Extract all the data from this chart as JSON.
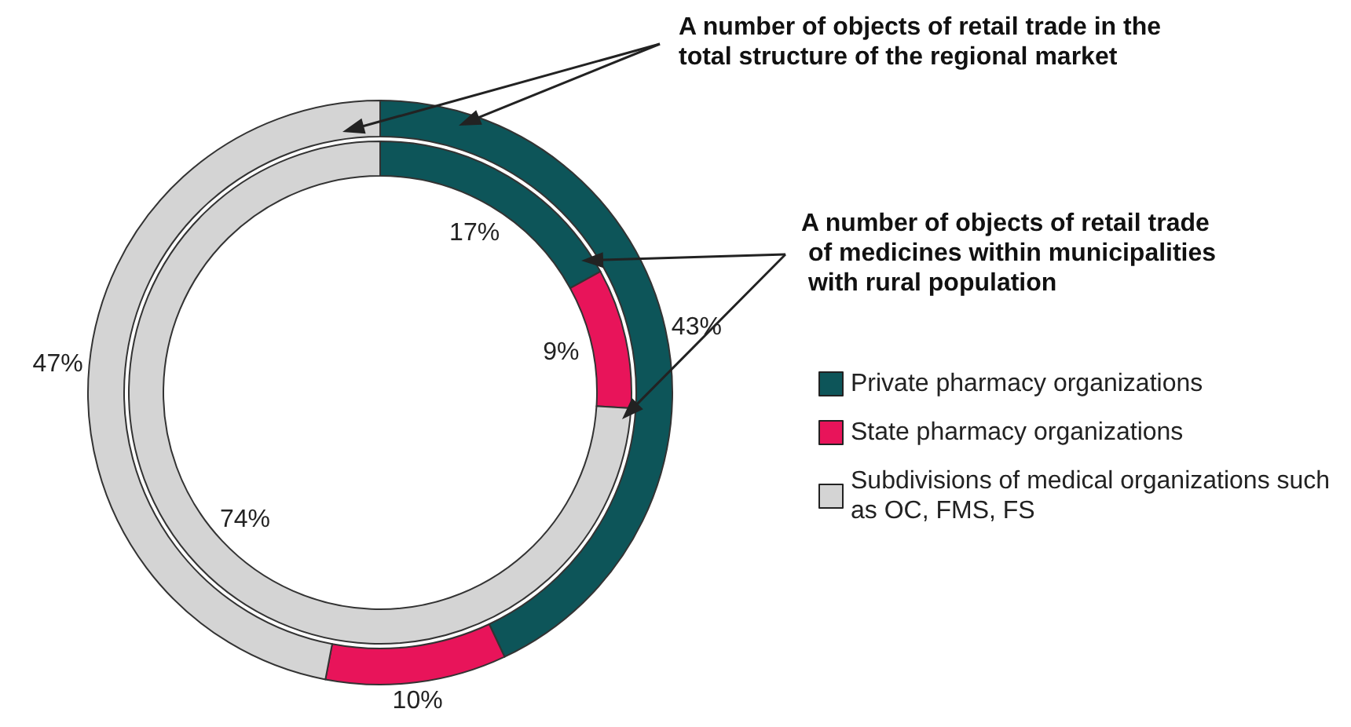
{
  "chart_data": [
    {
      "type": "donut",
      "categories": [
        "Private pharmacy organizations",
        "State pharmacy organizations",
        "Subdivisions of medical organizations such as OC, FMS, FS"
      ],
      "colors": [
        "#0d5559",
        "#e8145a",
        "#d4d4d4"
      ],
      "values": [
        43,
        10,
        47
      ],
      "value_labels": [
        "43%",
        "10%",
        "47%"
      ],
      "legend": "right",
      "annotations": [
        "A number of objects of retail trade in the total structure of the regional market"
      ]
    },
    {
      "type": "donut",
      "colors": [
        "#0d5559",
        "#e8145a",
        "#d4d4d4"
      ],
      "values": [
        17,
        9,
        74
      ],
      "categories": [
        null,
        null,
        null
      ],
      "value_labels": [
        "17%",
        "9%",
        "74%"
      ],
      "annotations": [
        "A number of objects of retail trade of medicines within municipalities with rural population"
      ]
    }
  ]
}
